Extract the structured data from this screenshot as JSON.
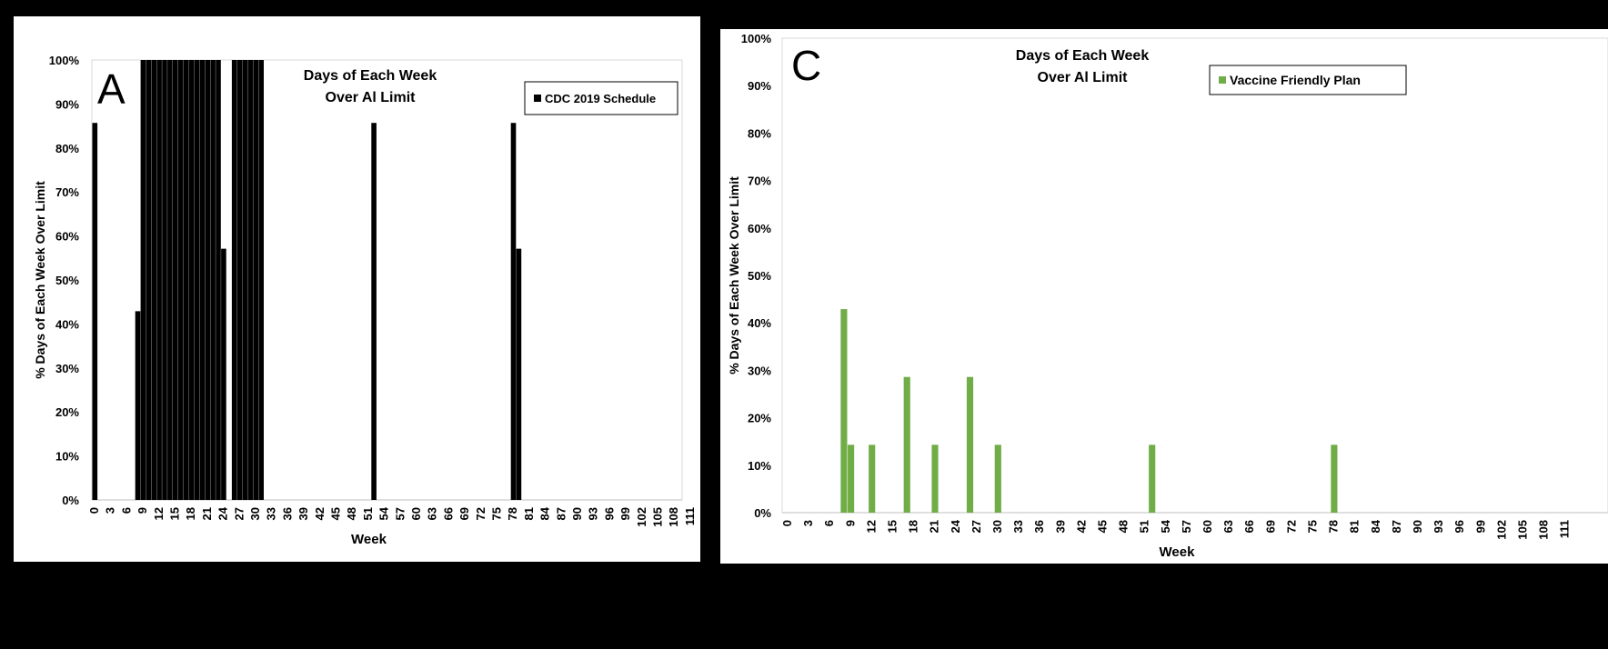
{
  "chart_data": [
    {
      "type": "bar",
      "panel_letter": "A",
      "title": [
        "Days of Each Week",
        "Over Al Limit"
      ],
      "xlabel": "Week",
      "ylabel": "% Days of Each Week Over Limit",
      "legend": {
        "label": "CDC 2019 Schedule",
        "position": "top-right"
      },
      "color": "#000000",
      "x_ticks": [
        "0",
        "3",
        "6",
        "9",
        "12",
        "15",
        "18",
        "21",
        "24",
        "27",
        "30",
        "33",
        "36",
        "39",
        "42",
        "45",
        "48",
        "51",
        "54",
        "57",
        "60",
        "63",
        "66",
        "69",
        "72",
        "75",
        "78",
        "81",
        "84",
        "87",
        "90",
        "93",
        "96",
        "99",
        "102",
        "105",
        "108",
        "111"
      ],
      "y_ticks": [
        "0%",
        "10%",
        "20%",
        "30%",
        "40%",
        "50%",
        "60%",
        "70%",
        "80%",
        "90%",
        "100%"
      ],
      "xlim": [
        0,
        111
      ],
      "ylim": [
        0,
        1
      ],
      "points": [
        {
          "x": 0,
          "y": 0.857
        },
        {
          "x": 8,
          "y": 0.429
        },
        {
          "x": 9,
          "y": 1.0
        },
        {
          "x": 10,
          "y": 1.0
        },
        {
          "x": 11,
          "y": 1.0
        },
        {
          "x": 12,
          "y": 1.0
        },
        {
          "x": 13,
          "y": 1.0
        },
        {
          "x": 14,
          "y": 1.0
        },
        {
          "x": 15,
          "y": 1.0
        },
        {
          "x": 16,
          "y": 1.0
        },
        {
          "x": 17,
          "y": 1.0
        },
        {
          "x": 18,
          "y": 1.0
        },
        {
          "x": 19,
          "y": 1.0
        },
        {
          "x": 20,
          "y": 1.0
        },
        {
          "x": 21,
          "y": 1.0
        },
        {
          "x": 22,
          "y": 1.0
        },
        {
          "x": 23,
          "y": 1.0
        },
        {
          "x": 24,
          "y": 0.571
        },
        {
          "x": 26,
          "y": 1.0
        },
        {
          "x": 27,
          "y": 1.0
        },
        {
          "x": 28,
          "y": 1.0
        },
        {
          "x": 29,
          "y": 1.0
        },
        {
          "x": 30,
          "y": 1.0
        },
        {
          "x": 31,
          "y": 1.0
        },
        {
          "x": 52,
          "y": 0.857
        },
        {
          "x": 78,
          "y": 0.857
        },
        {
          "x": 79,
          "y": 0.571
        }
      ]
    },
    {
      "type": "bar",
      "panel_letter": "C",
      "title": [
        "Days of Each Week",
        "Over Al Limit"
      ],
      "xlabel": "Week",
      "ylabel": "% Days of Each Week Over Limit",
      "legend": {
        "label": "Vaccine Friendly Plan",
        "position": "top-right"
      },
      "color": "#70ad47",
      "x_ticks": [
        "0",
        "3",
        "6",
        "9",
        "12",
        "15",
        "18",
        "21",
        "24",
        "27",
        "30",
        "33",
        "36",
        "39",
        "42",
        "45",
        "48",
        "51",
        "54",
        "57",
        "60",
        "63",
        "66",
        "69",
        "72",
        "75",
        "78",
        "81",
        "84",
        "87",
        "90",
        "93",
        "96",
        "99",
        "102",
        "105",
        "108",
        "111"
      ],
      "y_ticks": [
        "0%",
        "10%",
        "20%",
        "30%",
        "40%",
        "50%",
        "60%",
        "70%",
        "80%",
        "90%",
        "100%"
      ],
      "xlim": [
        0,
        111
      ],
      "ylim": [
        0,
        1
      ],
      "points": [
        {
          "x": 8,
          "y": 0.429
        },
        {
          "x": 9,
          "y": 0.143
        },
        {
          "x": 12,
          "y": 0.143
        },
        {
          "x": 17,
          "y": 0.286
        },
        {
          "x": 21,
          "y": 0.143
        },
        {
          "x": 26,
          "y": 0.286
        },
        {
          "x": 30,
          "y": 0.143
        },
        {
          "x": 52,
          "y": 0.143
        },
        {
          "x": 78,
          "y": 0.143
        }
      ]
    }
  ]
}
